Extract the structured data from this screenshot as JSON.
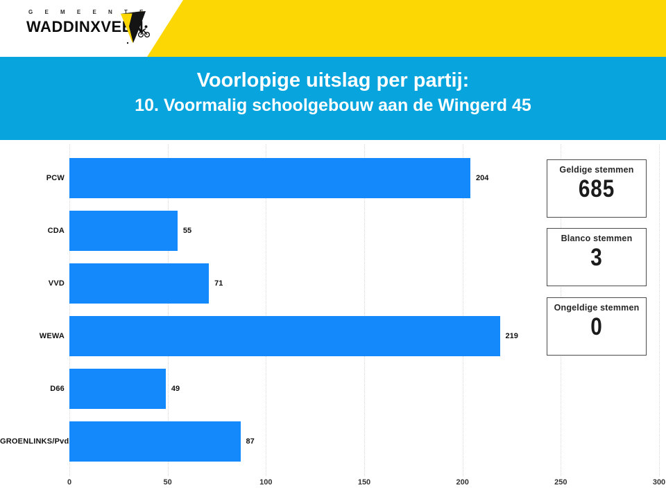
{
  "header": {
    "municipality_small": "G E M E E N T E",
    "municipality_name": "WADDINXVEEN",
    "brand_yellow": "#FCD703"
  },
  "title": {
    "line1": "Voorlopige uitslag per partij:",
    "line2": "10. Voormalig schoolgebouw aan de Wingerd 45",
    "band_color": "#07A4DE",
    "text_color": "#FFFFFF"
  },
  "chart_data": {
    "type": "bar",
    "orientation": "horizontal",
    "title": "Voorlopige uitslag per partij: 10. Voormalig schoolgebouw aan de Wingerd 45",
    "categories": [
      "PCW",
      "CDA",
      "VVD",
      "WEWA",
      "D66",
      "GROENLINKS/PvdA"
    ],
    "values": [
      204,
      55,
      71,
      219,
      49,
      87
    ],
    "xlabel": "",
    "ylabel": "",
    "xlim": [
      0,
      300
    ],
    "x_ticks": [
      0,
      50,
      100,
      150,
      200,
      250,
      300
    ],
    "grid": "vertical-dotted",
    "legend": "none",
    "bar_color": "#1389FB",
    "data_labels": true
  },
  "summary_boxes": [
    {
      "label": "Geldige stemmen",
      "value": "685"
    },
    {
      "label": "Blanco stemmen",
      "value": "3"
    },
    {
      "label": "Ongeldige stemmen",
      "value": "0"
    }
  ]
}
